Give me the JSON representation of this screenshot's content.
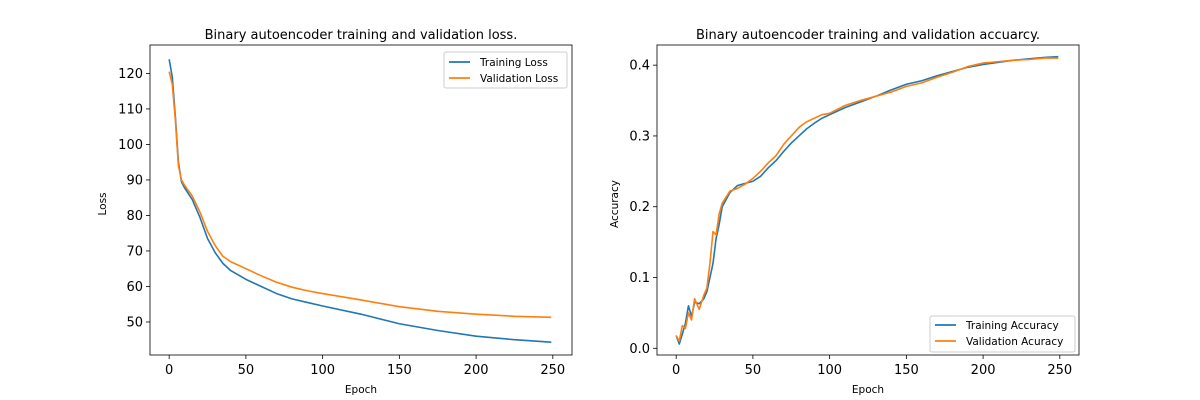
{
  "colors": {
    "series1": "#1f77b4",
    "series2": "#ff7f0e"
  },
  "chart_data": [
    {
      "type": "line",
      "title": "Binary autoencoder training and validation loss.",
      "xlabel": "Epoch",
      "ylabel": "Loss",
      "xlim": [
        -12.5,
        262.5
      ],
      "ylim": [
        40.7,
        128.0
      ],
      "xticks": [
        0,
        50,
        100,
        150,
        200,
        250
      ],
      "yticks": [
        50,
        60,
        70,
        80,
        90,
        100,
        110,
        120
      ],
      "grid": false,
      "legend_position": "top-right",
      "series": [
        {
          "name": "Training Loss",
          "color": "#1f77b4",
          "points": [
            [
              0,
              124
            ],
            [
              2,
              119
            ],
            [
              4,
              108
            ],
            [
              6,
              95
            ],
            [
              8,
              89.5
            ],
            [
              10,
              87.8
            ],
            [
              15,
              84.5
            ],
            [
              20,
              79.5
            ],
            [
              25,
              73.5
            ],
            [
              30,
              69.5
            ],
            [
              35,
              66.5
            ],
            [
              40,
              64.5
            ],
            [
              50,
              62
            ],
            [
              60,
              60
            ],
            [
              70,
              58
            ],
            [
              80,
              56.5
            ],
            [
              90,
              55.5
            ],
            [
              100,
              54.5
            ],
            [
              125,
              52.2
            ],
            [
              150,
              49.5
            ],
            [
              175,
              47.6
            ],
            [
              200,
              46
            ],
            [
              225,
              45
            ],
            [
              249,
              44.3
            ]
          ]
        },
        {
          "name": "Validation Loss",
          "color": "#ff7f0e",
          "points": [
            [
              0,
              120.5
            ],
            [
              2,
              117
            ],
            [
              4,
              107
            ],
            [
              6,
              94
            ],
            [
              8,
              90
            ],
            [
              10,
              88.5
            ],
            [
              15,
              85.5
            ],
            [
              20,
              81
            ],
            [
              25,
              75.5
            ],
            [
              30,
              71.5
            ],
            [
              35,
              68.5
            ],
            [
              40,
              67
            ],
            [
              50,
              65
            ],
            [
              60,
              63
            ],
            [
              70,
              61.2
            ],
            [
              80,
              59.8
            ],
            [
              90,
              58.8
            ],
            [
              100,
              58
            ],
            [
              125,
              56.2
            ],
            [
              150,
              54.3
            ],
            [
              175,
              53
            ],
            [
              200,
              52.2
            ],
            [
              225,
              51.6
            ],
            [
              249,
              51.3
            ]
          ]
        }
      ]
    },
    {
      "type": "line",
      "title": "Binary autoencoder training and validation accuarcy.",
      "xlabel": "Epoch",
      "ylabel": "Accuracy",
      "xlim": [
        -12.5,
        262.5
      ],
      "ylim": [
        -0.0095,
        0.4285
      ],
      "xticks": [
        0,
        50,
        100,
        150,
        200,
        250
      ],
      "yticks": [
        0.0,
        0.1,
        0.2,
        0.3,
        0.4
      ],
      "ytick_labels": [
        "0.0",
        "0.1",
        "0.2",
        "0.3",
        "0.4"
      ],
      "grid": false,
      "legend_position": "bottom-right",
      "series": [
        {
          "name": "Training Accuracy",
          "color": "#1f77b4",
          "points": [
            [
              0,
              0.018
            ],
            [
              2,
              0.006
            ],
            [
              4,
              0.02
            ],
            [
              6,
              0.035
            ],
            [
              8,
              0.06
            ],
            [
              10,
              0.045
            ],
            [
              12,
              0.065
            ],
            [
              15,
              0.063
            ],
            [
              18,
              0.07
            ],
            [
              20,
              0.08
            ],
            [
              22,
              0.1
            ],
            [
              24,
              0.12
            ],
            [
              26,
              0.155
            ],
            [
              28,
              0.175
            ],
            [
              30,
              0.2
            ],
            [
              35,
              0.22
            ],
            [
              40,
              0.23
            ],
            [
              45,
              0.233
            ],
            [
              50,
              0.236
            ],
            [
              55,
              0.243
            ],
            [
              60,
              0.255
            ],
            [
              65,
              0.265
            ],
            [
              70,
              0.278
            ],
            [
              75,
              0.29
            ],
            [
              80,
              0.3
            ],
            [
              85,
              0.31
            ],
            [
              90,
              0.318
            ],
            [
              95,
              0.325
            ],
            [
              100,
              0.33
            ],
            [
              110,
              0.34
            ],
            [
              120,
              0.348
            ],
            [
              130,
              0.356
            ],
            [
              140,
              0.365
            ],
            [
              150,
              0.373
            ],
            [
              160,
              0.378
            ],
            [
              170,
              0.385
            ],
            [
              180,
              0.391
            ],
            [
              190,
              0.397
            ],
            [
              200,
              0.401
            ],
            [
              210,
              0.404
            ],
            [
              220,
              0.407
            ],
            [
              230,
              0.409
            ],
            [
              240,
              0.411
            ],
            [
              249,
              0.412
            ]
          ]
        },
        {
          "name": "Validation Acuracy",
          "color": "#ff7f0e",
          "points": [
            [
              0,
              0.018
            ],
            [
              2,
              0.01
            ],
            [
              4,
              0.032
            ],
            [
              6,
              0.028
            ],
            [
              8,
              0.05
            ],
            [
              10,
              0.04
            ],
            [
              12,
              0.07
            ],
            [
              15,
              0.055
            ],
            [
              18,
              0.075
            ],
            [
              20,
              0.085
            ],
            [
              22,
              0.12
            ],
            [
              24,
              0.165
            ],
            [
              26,
              0.16
            ],
            [
              28,
              0.19
            ],
            [
              30,
              0.205
            ],
            [
              35,
              0.222
            ],
            [
              40,
              0.226
            ],
            [
              45,
              0.232
            ],
            [
              50,
              0.24
            ],
            [
              55,
              0.25
            ],
            [
              60,
              0.262
            ],
            [
              65,
              0.272
            ],
            [
              70,
              0.288
            ],
            [
              75,
              0.3
            ],
            [
              80,
              0.312
            ],
            [
              85,
              0.32
            ],
            [
              90,
              0.325
            ],
            [
              95,
              0.33
            ],
            [
              100,
              0.332
            ],
            [
              110,
              0.343
            ],
            [
              120,
              0.35
            ],
            [
              130,
              0.356
            ],
            [
              140,
              0.362
            ],
            [
              150,
              0.37
            ],
            [
              160,
              0.375
            ],
            [
              170,
              0.383
            ],
            [
              180,
              0.39
            ],
            [
              190,
              0.398
            ],
            [
              200,
              0.403
            ],
            [
              210,
              0.405
            ],
            [
              220,
              0.407
            ],
            [
              230,
              0.408
            ],
            [
              240,
              0.41
            ],
            [
              249,
              0.41
            ]
          ]
        }
      ]
    }
  ]
}
